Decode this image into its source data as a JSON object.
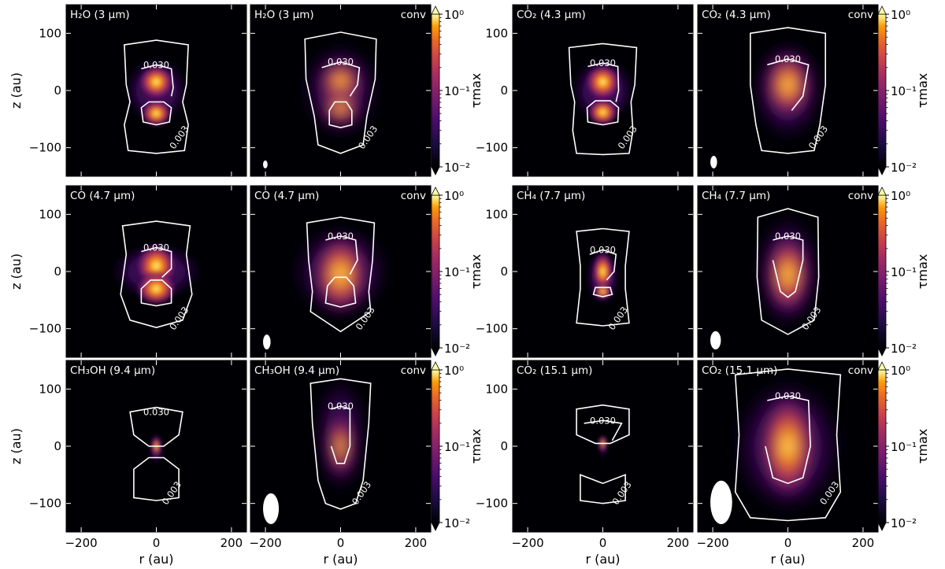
{
  "chart_data": {
    "type": "heatmap",
    "quantity_label": "τmax",
    "colormap": "inferno",
    "color_scale": "log",
    "color_range": [
      0.01,
      1
    ],
    "colorbar_ticks": [
      "10⁰",
      "10⁻¹",
      "10⁻²"
    ],
    "xlabel": "r (au)",
    "ylabel": "z (au)",
    "xlim": [
      -240,
      240
    ],
    "ylim": [
      -150,
      150
    ],
    "xticks": [
      -200,
      0,
      200
    ],
    "yticks": [
      100,
      0,
      -100
    ],
    "contour_levels": [
      "0.030",
      "0.003"
    ],
    "conv_tag": "conv",
    "panels": [
      {
        "species": "H₂O (3 μm)",
        "convolved": false,
        "peak_tau": 0.6,
        "beam": null
      },
      {
        "species": "H₂O (3 μm)",
        "convolved": true,
        "peak_tau": 0.5,
        "beam": {
          "major_au": 14,
          "minor_au": 12
        }
      },
      {
        "species": "CO₂ (4.3 μm)",
        "convolved": false,
        "peak_tau": 0.6,
        "beam": null
      },
      {
        "species": "CO₂ (4.3 μm)",
        "convolved": true,
        "peak_tau": 0.5,
        "beam": {
          "major_au": 22,
          "minor_au": 18
        }
      },
      {
        "species": "CO (4.7 μm)",
        "convolved": false,
        "peak_tau": 0.7,
        "beam": null
      },
      {
        "species": "CO (4.7 μm)",
        "convolved": true,
        "peak_tau": 0.7,
        "beam": {
          "major_au": 26,
          "minor_au": 20
        }
      },
      {
        "species": "CH₄ (7.7 μm)",
        "convolved": false,
        "peak_tau": 0.6,
        "beam": null
      },
      {
        "species": "CH₄ (7.7 μm)",
        "convolved": true,
        "peak_tau": 0.5,
        "beam": {
          "major_au": 32,
          "minor_au": 28
        }
      },
      {
        "species": "CH₃OH (9.4 μm)",
        "convolved": false,
        "peak_tau": 0.6,
        "beam": null
      },
      {
        "species": "CH₃OH (9.4 μm)",
        "convolved": true,
        "peak_tau": 0.4,
        "beam": {
          "major_au": 54,
          "minor_au": 42
        }
      },
      {
        "species": "CO₂ (15.1 μm)",
        "convolved": false,
        "peak_tau": 0.6,
        "beam": null
      },
      {
        "species": "CO₂ (15.1 μm)",
        "convolved": true,
        "peak_tau": 0.8,
        "beam": {
          "major_au": 76,
          "minor_au": 58
        }
      }
    ]
  }
}
